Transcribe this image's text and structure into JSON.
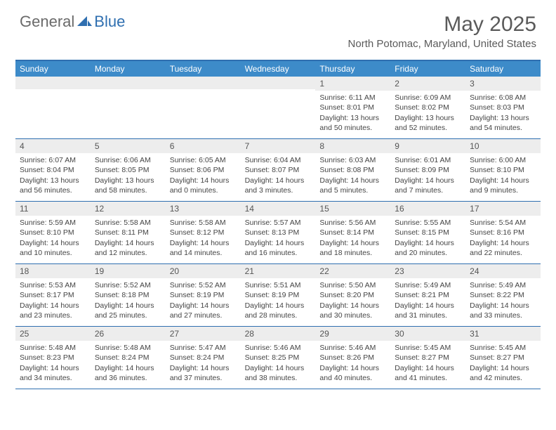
{
  "logo": {
    "part1": "General",
    "part2": "Blue"
  },
  "title": "May 2025",
  "location": "North Potomac, Maryland, United States",
  "colors": {
    "header_bar": "#3d8bc9",
    "border": "#2f6fb0",
    "daynum_bg": "#ededed",
    "text": "#444444",
    "title_text": "#5a5a5a"
  },
  "daysOfWeek": [
    "Sunday",
    "Monday",
    "Tuesday",
    "Wednesday",
    "Thursday",
    "Friday",
    "Saturday"
  ],
  "weeks": [
    [
      {
        "num": "",
        "sunrise": "",
        "sunset": "",
        "daylight": ""
      },
      {
        "num": "",
        "sunrise": "",
        "sunset": "",
        "daylight": ""
      },
      {
        "num": "",
        "sunrise": "",
        "sunset": "",
        "daylight": ""
      },
      {
        "num": "",
        "sunrise": "",
        "sunset": "",
        "daylight": ""
      },
      {
        "num": "1",
        "sunrise": "Sunrise: 6:11 AM",
        "sunset": "Sunset: 8:01 PM",
        "daylight": "Daylight: 13 hours and 50 minutes."
      },
      {
        "num": "2",
        "sunrise": "Sunrise: 6:09 AM",
        "sunset": "Sunset: 8:02 PM",
        "daylight": "Daylight: 13 hours and 52 minutes."
      },
      {
        "num": "3",
        "sunrise": "Sunrise: 6:08 AM",
        "sunset": "Sunset: 8:03 PM",
        "daylight": "Daylight: 13 hours and 54 minutes."
      }
    ],
    [
      {
        "num": "4",
        "sunrise": "Sunrise: 6:07 AM",
        "sunset": "Sunset: 8:04 PM",
        "daylight": "Daylight: 13 hours and 56 minutes."
      },
      {
        "num": "5",
        "sunrise": "Sunrise: 6:06 AM",
        "sunset": "Sunset: 8:05 PM",
        "daylight": "Daylight: 13 hours and 58 minutes."
      },
      {
        "num": "6",
        "sunrise": "Sunrise: 6:05 AM",
        "sunset": "Sunset: 8:06 PM",
        "daylight": "Daylight: 14 hours and 0 minutes."
      },
      {
        "num": "7",
        "sunrise": "Sunrise: 6:04 AM",
        "sunset": "Sunset: 8:07 PM",
        "daylight": "Daylight: 14 hours and 3 minutes."
      },
      {
        "num": "8",
        "sunrise": "Sunrise: 6:03 AM",
        "sunset": "Sunset: 8:08 PM",
        "daylight": "Daylight: 14 hours and 5 minutes."
      },
      {
        "num": "9",
        "sunrise": "Sunrise: 6:01 AM",
        "sunset": "Sunset: 8:09 PM",
        "daylight": "Daylight: 14 hours and 7 minutes."
      },
      {
        "num": "10",
        "sunrise": "Sunrise: 6:00 AM",
        "sunset": "Sunset: 8:10 PM",
        "daylight": "Daylight: 14 hours and 9 minutes."
      }
    ],
    [
      {
        "num": "11",
        "sunrise": "Sunrise: 5:59 AM",
        "sunset": "Sunset: 8:10 PM",
        "daylight": "Daylight: 14 hours and 10 minutes."
      },
      {
        "num": "12",
        "sunrise": "Sunrise: 5:58 AM",
        "sunset": "Sunset: 8:11 PM",
        "daylight": "Daylight: 14 hours and 12 minutes."
      },
      {
        "num": "13",
        "sunrise": "Sunrise: 5:58 AM",
        "sunset": "Sunset: 8:12 PM",
        "daylight": "Daylight: 14 hours and 14 minutes."
      },
      {
        "num": "14",
        "sunrise": "Sunrise: 5:57 AM",
        "sunset": "Sunset: 8:13 PM",
        "daylight": "Daylight: 14 hours and 16 minutes."
      },
      {
        "num": "15",
        "sunrise": "Sunrise: 5:56 AM",
        "sunset": "Sunset: 8:14 PM",
        "daylight": "Daylight: 14 hours and 18 minutes."
      },
      {
        "num": "16",
        "sunrise": "Sunrise: 5:55 AM",
        "sunset": "Sunset: 8:15 PM",
        "daylight": "Daylight: 14 hours and 20 minutes."
      },
      {
        "num": "17",
        "sunrise": "Sunrise: 5:54 AM",
        "sunset": "Sunset: 8:16 PM",
        "daylight": "Daylight: 14 hours and 22 minutes."
      }
    ],
    [
      {
        "num": "18",
        "sunrise": "Sunrise: 5:53 AM",
        "sunset": "Sunset: 8:17 PM",
        "daylight": "Daylight: 14 hours and 23 minutes."
      },
      {
        "num": "19",
        "sunrise": "Sunrise: 5:52 AM",
        "sunset": "Sunset: 8:18 PM",
        "daylight": "Daylight: 14 hours and 25 minutes."
      },
      {
        "num": "20",
        "sunrise": "Sunrise: 5:52 AM",
        "sunset": "Sunset: 8:19 PM",
        "daylight": "Daylight: 14 hours and 27 minutes."
      },
      {
        "num": "21",
        "sunrise": "Sunrise: 5:51 AM",
        "sunset": "Sunset: 8:19 PM",
        "daylight": "Daylight: 14 hours and 28 minutes."
      },
      {
        "num": "22",
        "sunrise": "Sunrise: 5:50 AM",
        "sunset": "Sunset: 8:20 PM",
        "daylight": "Daylight: 14 hours and 30 minutes."
      },
      {
        "num": "23",
        "sunrise": "Sunrise: 5:49 AM",
        "sunset": "Sunset: 8:21 PM",
        "daylight": "Daylight: 14 hours and 31 minutes."
      },
      {
        "num": "24",
        "sunrise": "Sunrise: 5:49 AM",
        "sunset": "Sunset: 8:22 PM",
        "daylight": "Daylight: 14 hours and 33 minutes."
      }
    ],
    [
      {
        "num": "25",
        "sunrise": "Sunrise: 5:48 AM",
        "sunset": "Sunset: 8:23 PM",
        "daylight": "Daylight: 14 hours and 34 minutes."
      },
      {
        "num": "26",
        "sunrise": "Sunrise: 5:48 AM",
        "sunset": "Sunset: 8:24 PM",
        "daylight": "Daylight: 14 hours and 36 minutes."
      },
      {
        "num": "27",
        "sunrise": "Sunrise: 5:47 AM",
        "sunset": "Sunset: 8:24 PM",
        "daylight": "Daylight: 14 hours and 37 minutes."
      },
      {
        "num": "28",
        "sunrise": "Sunrise: 5:46 AM",
        "sunset": "Sunset: 8:25 PM",
        "daylight": "Daylight: 14 hours and 38 minutes."
      },
      {
        "num": "29",
        "sunrise": "Sunrise: 5:46 AM",
        "sunset": "Sunset: 8:26 PM",
        "daylight": "Daylight: 14 hours and 40 minutes."
      },
      {
        "num": "30",
        "sunrise": "Sunrise: 5:45 AM",
        "sunset": "Sunset: 8:27 PM",
        "daylight": "Daylight: 14 hours and 41 minutes."
      },
      {
        "num": "31",
        "sunrise": "Sunrise: 5:45 AM",
        "sunset": "Sunset: 8:27 PM",
        "daylight": "Daylight: 14 hours and 42 minutes."
      }
    ]
  ]
}
